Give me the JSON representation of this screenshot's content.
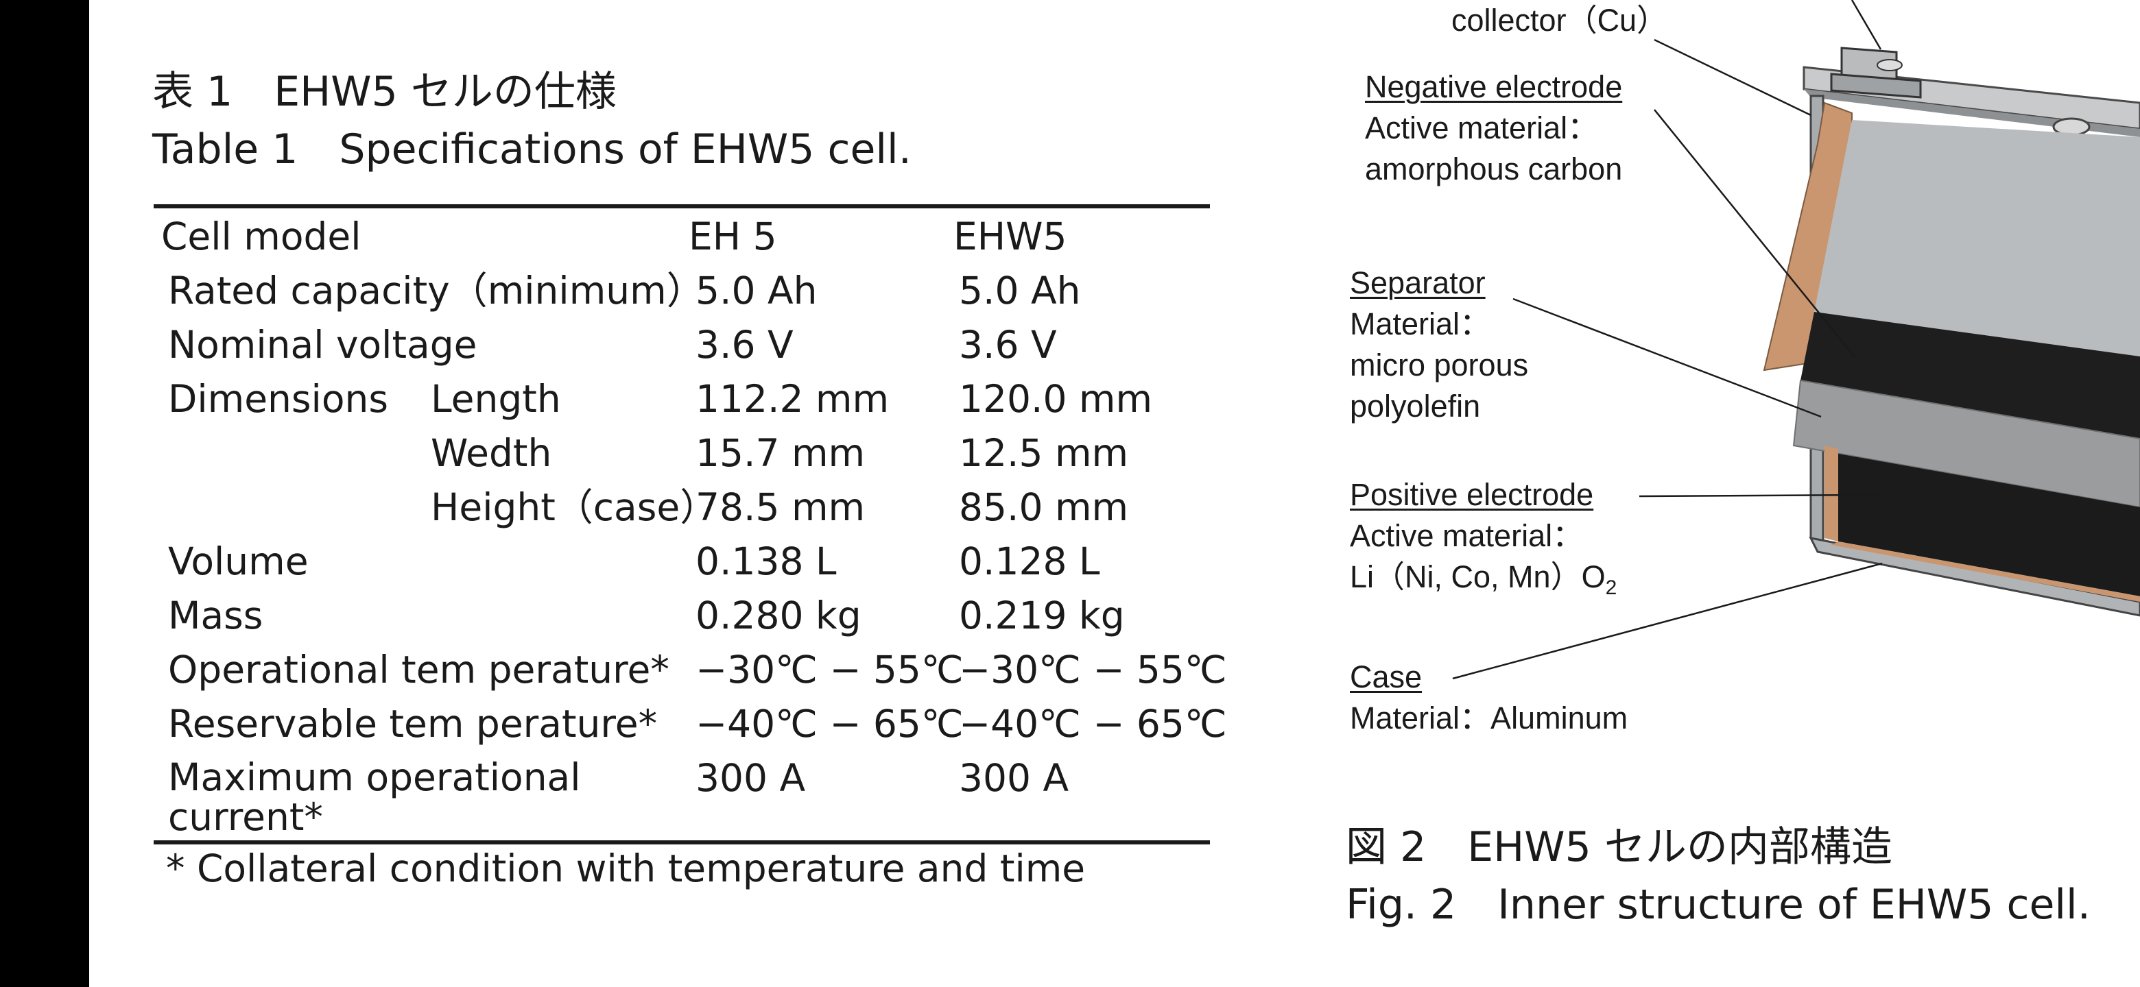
{
  "table": {
    "caption_ja": "表 1　EHW5 セルの仕様",
    "caption_en": "Table 1　Specifications of EHW5 cell.",
    "header": {
      "label": "Cell model",
      "col1": "EH 5",
      "col2": "EHW5"
    },
    "rows": {
      "capacity": {
        "label": "Rated capacity（minimum）",
        "v1": "5.0 Ah",
        "v2": "5.0 Ah"
      },
      "voltage": {
        "label": "Nominal voltage",
        "v1": "3.6 V",
        "v2": "3.6 V"
      },
      "length": {
        "group": "Dimensions",
        "label": "Length",
        "v1": "112.2 mm",
        "v2": "120.0 mm"
      },
      "width": {
        "label": "Wedth",
        "v1": "15.7 mm",
        "v2": "12.5 mm"
      },
      "height": {
        "label": "Height（case）",
        "v1": "78.5 mm",
        "v2": "85.0 mm"
      },
      "volume": {
        "label": "Volume",
        "v1": "0.138 L",
        "v2": "0.128 L"
      },
      "mass": {
        "label": "Mass",
        "v1": "0.280 kg",
        "v2": "0.219 kg"
      },
      "op_temp": {
        "label": "Operational tem perature*",
        "v1": "−30℃ − 55℃",
        "v2": "−30℃ − 55℃"
      },
      "res_temp": {
        "label": "Reservable tem perature*",
        "v1": "−40℃ − 65℃",
        "v2": "−40℃ − 65℃"
      },
      "max_current": {
        "label": "Maximum operational current*",
        "v1": "300 A",
        "v2": "300 A"
      }
    },
    "footnote": "* Collateral condition with temperature and time"
  },
  "figure": {
    "labels": {
      "collector": "collector（Cu）",
      "neg_title": "Negative electrode",
      "neg_line1": "Active material：",
      "neg_line2": "amorphous carbon",
      "sep_title": "Separator",
      "sep_line1": "Material：",
      "sep_line2": "micro porous",
      "sep_line3": "polyolefin",
      "pos_title": "Positive electrode",
      "pos_line1": "Active material：",
      "pos_line2a": "Li（Ni, Co, Mn）O",
      "pos_line2b": "2",
      "case_title": "Case",
      "case_line1": "Material：Aluminum"
    },
    "caption_ja": "図 2　EHW5 セルの内部構造",
    "caption_en": "Fig. 2　Inner structure of EHW5 cell.",
    "colors": {
      "copper": "#c99670",
      "dark_layer": "#1e1e1e",
      "separator": "#9a9c9e",
      "case": "#a9acae"
    }
  }
}
